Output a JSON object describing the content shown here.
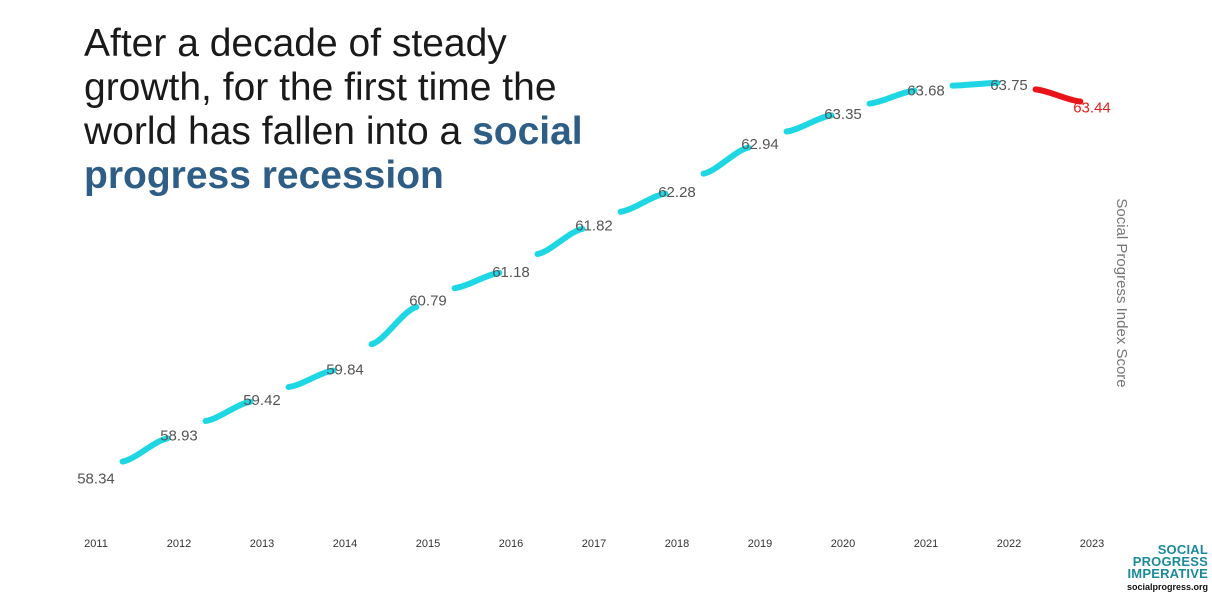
{
  "headline": {
    "line_plain": "After a decade of steady growth, for the first time the world has fallen into a ",
    "line_highlight": "social progress recession"
  },
  "chart_data": {
    "type": "line",
    "title": "After a decade of steady growth, for the first time the world has fallen into a social progress recession",
    "xlabel": "",
    "ylabel": "Social Progress Index Score",
    "categories": [
      "2011",
      "2012",
      "2013",
      "2014",
      "2015",
      "2016",
      "2017",
      "2018",
      "2019",
      "2020",
      "2021",
      "2022",
      "2023"
    ],
    "series": [
      {
        "name": "Social Progress Index Score",
        "values": [
          58.34,
          58.93,
          59.42,
          59.84,
          60.79,
          61.18,
          61.82,
          62.28,
          62.94,
          63.35,
          63.68,
          63.75,
          63.44
        ],
        "labels": [
          "58.34",
          "58.93",
          "59.42",
          "59.84",
          "60.79",
          "61.18",
          "61.82",
          "62.28",
          "62.94",
          "63.35",
          "63.68",
          "63.75",
          "63.44"
        ]
      }
    ],
    "ylim": [
      58.0,
      64.0
    ],
    "grid": false,
    "legend": "none",
    "colors": {
      "rising": "#1fd7e4",
      "falling": "#e8141a",
      "dropline": "#2ad0de",
      "highlight_label": "#e0201b"
    }
  },
  "logo": {
    "line1": "SOCIAL",
    "line2": "PROGRESS",
    "line3": "IMPERATIVE",
    "site": "socialprogress.org"
  }
}
